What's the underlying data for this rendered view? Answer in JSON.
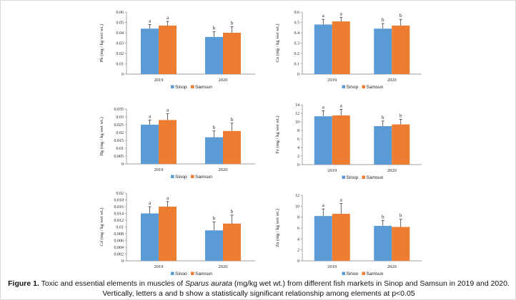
{
  "caption": {
    "label": "Figure 1.",
    "before": " Toxic and essential elements in muscles of ",
    "species": "Sparus aurata",
    "after": " (mg/kg wet wt.) from different fish markets in Sinop and Samsun in 2019 and 2020. Vertically, letters a and b show a statistically significant relationship among elements at p<0.05"
  },
  "colors": {
    "Sinop": "#5b9bd5",
    "Samsun": "#ed7d31",
    "axis": "#7f7f7f",
    "error": "#222222"
  },
  "chart_data": [
    {
      "type": "bar",
      "ylabel": "Pb (mg / kg wet wt.)",
      "categories": [
        "2019",
        "2020"
      ],
      "series": [
        {
          "name": "Sinop",
          "values": [
            0.044,
            0.036
          ],
          "errors": [
            0.004,
            0.005
          ],
          "letters": [
            "a",
            "b"
          ]
        },
        {
          "name": "Samsun",
          "values": [
            0.047,
            0.04
          ],
          "errors": [
            0.004,
            0.006
          ],
          "letters": [
            "a",
            "b"
          ]
        }
      ],
      "ylim": [
        0,
        0.06
      ],
      "ticks": [
        "0",
        "0.01",
        "0.02",
        "0.03",
        "0.04",
        "0.05",
        "0.06"
      ],
      "legend": "bottom"
    },
    {
      "type": "bar",
      "ylabel": "Cu (mg / kg wet wt.)",
      "categories": [
        "2019",
        "2020"
      ],
      "series": [
        {
          "name": "Sinop",
          "values": [
            0.48,
            0.44
          ],
          "errors": [
            0.05,
            0.05
          ],
          "letters": [
            "a",
            "b"
          ]
        },
        {
          "name": "Samsun",
          "values": [
            0.51,
            0.47
          ],
          "errors": [
            0.04,
            0.06
          ],
          "letters": [
            "a",
            "b"
          ]
        }
      ],
      "ylim": [
        0,
        0.6
      ],
      "ticks": [
        "0",
        "0.1",
        "0.2",
        "0.3",
        "0.4",
        "0.5",
        "0.6"
      ],
      "legend": "bottom"
    },
    {
      "type": "bar",
      "ylabel": "Hg (mg / kg wet wt.)",
      "categories": [
        "2019",
        "2020"
      ],
      "series": [
        {
          "name": "Sinop",
          "values": [
            0.025,
            0.017
          ],
          "errors": [
            0.003,
            0.004
          ],
          "letters": [
            "a",
            "b"
          ]
        },
        {
          "name": "Samsun",
          "values": [
            0.028,
            0.021
          ],
          "errors": [
            0.004,
            0.005
          ],
          "letters": [
            "a",
            "b"
          ]
        }
      ],
      "ylim": [
        0,
        0.035
      ],
      "ticks": [
        "0",
        "0.005",
        "0.01",
        "0.015",
        "0.02",
        "0.025",
        "0.03",
        "0.035"
      ],
      "legend": "bottom"
    },
    {
      "type": "bar",
      "ylabel": "Fe (mg / kg wet wt.)",
      "categories": [
        "2019",
        "2020"
      ],
      "series": [
        {
          "name": "Sinop",
          "values": [
            11.3,
            9.0
          ],
          "errors": [
            1.3,
            1.2
          ],
          "letters": [
            "a",
            "b"
          ]
        },
        {
          "name": "Samsun",
          "values": [
            11.5,
            9.4
          ],
          "errors": [
            1.4,
            1.2
          ],
          "letters": [
            "a",
            "b"
          ]
        }
      ],
      "ylim": [
        0,
        14
      ],
      "ticks": [
        "0",
        "2",
        "4",
        "6",
        "8",
        "10",
        "12",
        "14"
      ],
      "legend": "bottom"
    },
    {
      "type": "bar",
      "ylabel": "Cd (mg / kg wet wt.)",
      "categories": [
        "2019",
        "2020"
      ],
      "series": [
        {
          "name": "Sinop",
          "values": [
            0.014,
            0.009
          ],
          "errors": [
            0.002,
            0.0025
          ],
          "letters": [
            "a",
            "b"
          ]
        },
        {
          "name": "Samsun",
          "values": [
            0.016,
            0.011
          ],
          "errors": [
            0.0015,
            0.0025
          ],
          "letters": [
            "a",
            "b"
          ]
        }
      ],
      "ylim": [
        0,
        0.02
      ],
      "ticks": [
        "0",
        "0.002",
        "0.004",
        "0.006",
        "0.008",
        "0.01",
        "0.012",
        "0.014",
        "0.016",
        "0.018",
        "0.02"
      ],
      "legend": "bottom"
    },
    {
      "type": "bar",
      "ylabel": "Zn (mg / kg wet wt.)",
      "categories": [
        "2019",
        "2020"
      ],
      "series": [
        {
          "name": "Sinop",
          "values": [
            8.2,
            6.4
          ],
          "errors": [
            1.3,
            1.0
          ],
          "letters": [
            "a",
            "b"
          ]
        },
        {
          "name": "Samsun",
          "values": [
            8.6,
            6.2
          ],
          "errors": [
            1.9,
            1.4
          ],
          "letters": [
            "a",
            "b"
          ]
        }
      ],
      "ylim": [
        0,
        12
      ],
      "ticks": [
        "0",
        "2",
        "4",
        "6",
        "8",
        "10",
        "12"
      ],
      "legend": "bottom"
    }
  ]
}
